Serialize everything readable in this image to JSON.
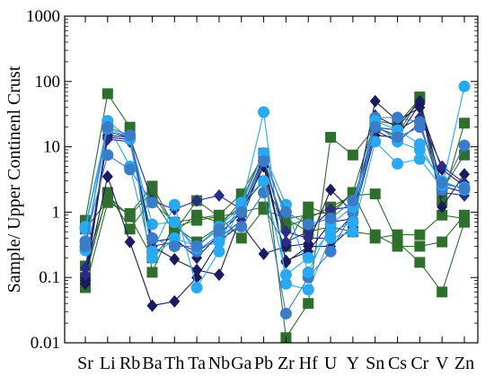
{
  "chart_data": {
    "type": "line",
    "ylabel": "Sample/ Upper Continenl Crust",
    "yscale": "log",
    "ylim": [
      0.01,
      1000
    ],
    "yticks": [
      "0.01",
      "0.1",
      "1",
      "10",
      "100",
      "1000"
    ],
    "categories": [
      "Sr",
      "Li",
      "Rb",
      "Ba",
      "Th",
      "Ta",
      "Nb",
      "Ga",
      "Pb",
      "Zr",
      "Hf",
      "U",
      "Y",
      "Sn",
      "Cs",
      "Cr",
      "V",
      "Zn"
    ],
    "series": [
      {
        "color": "#2e6f2e",
        "marker": "square",
        "values": [
          0.75,
          65,
          20,
          0.12,
          0.7,
          0.8,
          0.9,
          1.9,
          7.5,
          0.012,
          0.04,
          14,
          7.5,
          20,
          15,
          58,
          1.5,
          23
        ]
      },
      {
        "color": "#2e6f2e",
        "marker": "square",
        "values": [
          0.07,
          1.4,
          0.95,
          2.5,
          0.6,
          0.35,
          0.6,
          1.5,
          8.0,
          0.8,
          0.9,
          1.0,
          2.0,
          25,
          22,
          55,
          2.2,
          7.5
        ]
      },
      {
        "color": "#2e6f2e",
        "marker": "square",
        "values": [
          0.1,
          2.0,
          0.55,
          1.6,
          0.5,
          0.9,
          0.7,
          1.2,
          3.0,
          0.6,
          0.8,
          1.2,
          1.8,
          1.9,
          0.35,
          0.17,
          0.06,
          0.7
        ]
      },
      {
        "color": "#2e6f2e",
        "marker": "square",
        "values": [
          0.55,
          1.5,
          0.9,
          2.0,
          0.6,
          0.75,
          0.85,
          0.4,
          1.1,
          0.8,
          0.5,
          0.6,
          0.5,
          0.45,
          0.3,
          0.3,
          0.35,
          0.9
        ]
      },
      {
        "color": "#2e6f2e",
        "marker": "square",
        "values": [
          0.15,
          1.8,
          0.85,
          0.2,
          0.5,
          1.5,
          0.85,
          1.0,
          1.2,
          0.3,
          1.2,
          0.9,
          2.0,
          0.4,
          0.45,
          0.45,
          0.9,
          0.8
        ]
      },
      {
        "color": "#1a1a5e",
        "marker": "diamond",
        "values": [
          0.1,
          3.5,
          0.35,
          0.037,
          0.043,
          0.1,
          0.36,
          0.65,
          0.23,
          0.3,
          0.33,
          2.2,
          1.0,
          50,
          25,
          40,
          4.5,
          2.5
        ]
      },
      {
        "color": "#1a1a5e",
        "marker": "diamond",
        "values": [
          0.08,
          15,
          14,
          0.3,
          0.19,
          0.13,
          0.11,
          0.9,
          6.5,
          0.17,
          0.3,
          0.3,
          0.6,
          30,
          20,
          50,
          1.2,
          3.8
        ]
      },
      {
        "color": "#1a1a5e",
        "marker": "diamond",
        "values": [
          0.09,
          14,
          13,
          0.35,
          0.4,
          0.2,
          0.45,
          1.0,
          5.0,
          0.18,
          0.25,
          0.7,
          0.8,
          15,
          14,
          45,
          2.5,
          2.0
        ]
      },
      {
        "color": "#2b2b88",
        "marker": "diamond",
        "values": [
          0.11,
          17,
          14,
          1.5,
          1.1,
          1.5,
          1.8,
          1.1,
          7.0,
          0.35,
          0.5,
          1.1,
          1.2,
          20,
          18,
          28,
          5.0,
          2.8
        ]
      },
      {
        "color": "#2b2b88",
        "marker": "diamond",
        "values": [
          0.14,
          13,
          12,
          0.3,
          0.35,
          0.25,
          0.4,
          0.75,
          6.0,
          0.5,
          0.4,
          0.4,
          0.9,
          18,
          12,
          23,
          2.0,
          1.8
        ]
      },
      {
        "color": "#29a9f2",
        "marker": "circle",
        "values": [
          0.6,
          22,
          5.0,
          0.2,
          0.4,
          0.3,
          0.6,
          1.2,
          34,
          0.08,
          0.065,
          0.4,
          0.5,
          12,
          5.5,
          6.5,
          2.4,
          84
        ]
      },
      {
        "color": "#3a7cc8",
        "marker": "circle",
        "values": [
          0.36,
          7.5,
          4.5,
          1.4,
          0.7,
          0.25,
          0.45,
          0.6,
          2.0,
          0.028,
          0.1,
          0.25,
          1.0,
          28,
          28,
          24,
          2.2,
          10.5
        ]
      },
      {
        "color": "#29a9f2",
        "marker": "circle",
        "values": [
          0.26,
          25,
          13,
          0.25,
          1.3,
          0.07,
          0.25,
          1.3,
          8.0,
          1.3,
          0.12,
          0.65,
          1.2,
          25,
          18,
          11,
          2.6,
          2.4
        ]
      },
      {
        "color": "#29a9f2",
        "marker": "circle",
        "values": [
          0.55,
          19,
          14,
          0.65,
          0.7,
          0.28,
          0.35,
          1.4,
          3.0,
          0.11,
          0.2,
          0.5,
          0.7,
          23,
          12,
          9,
          3.0,
          2.2
        ]
      },
      {
        "color": "#3a7cc8",
        "marker": "circle",
        "values": [
          0.3,
          20,
          15,
          0.4,
          0.3,
          0.3,
          0.55,
          1.0,
          6.0,
          1.0,
          0.65,
          0.8,
          1.5,
          20,
          14,
          20,
          2.8,
          2.3
        ]
      }
    ]
  }
}
